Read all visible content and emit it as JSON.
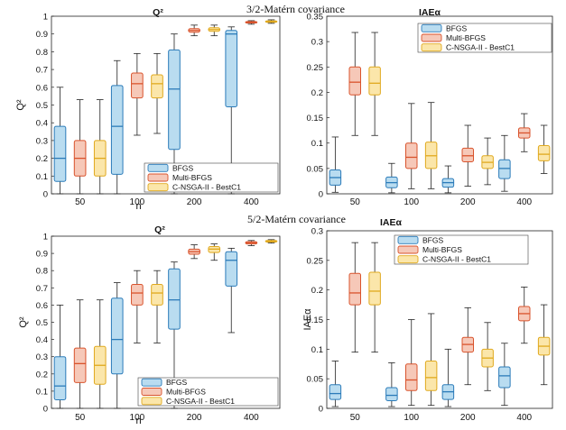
{
  "sections": [
    {
      "title": "3/2-Matérn covariance"
    },
    {
      "title": "5/2-Matérn covariance"
    }
  ],
  "legend_labels": [
    "BFGS",
    "Multi-BFGS",
    "C-NSGA-II - BestC1"
  ],
  "series_colors": {
    "BFGS": {
      "fill": "#b9dcf0",
      "stroke": "#2b7bb9"
    },
    "Multi-BFGS": {
      "fill": "#f6c8b8",
      "stroke": "#d9532c"
    },
    "C-NSGA-II - BestC1": {
      "fill": "#fbe6aa",
      "stroke": "#e0a91e"
    }
  },
  "chart_data": [
    {
      "type": "boxplot",
      "section": "3/2-Matérn covariance",
      "title": "Q²",
      "xlabel": "n",
      "ylabel": "Q²",
      "categories": [
        "50",
        "100",
        "200",
        "400"
      ],
      "ylim": [
        0,
        1
      ],
      "yticks": [
        0,
        0.1,
        0.2,
        0.3,
        0.4,
        0.5,
        0.6,
        0.7,
        0.8,
        0.9,
        1
      ],
      "legend_position": "bottom-right",
      "series": [
        {
          "name": "BFGS",
          "boxes": [
            {
              "min": 0.0,
              "q1": 0.07,
              "median": 0.2,
              "q3": 0.38,
              "max": 0.6
            },
            {
              "min": 0.0,
              "q1": 0.11,
              "median": 0.38,
              "q3": 0.61,
              "max": 0.75
            },
            {
              "min": 0.0,
              "q1": 0.25,
              "median": 0.59,
              "q3": 0.81,
              "max": 0.9
            },
            {
              "min": 0.0,
              "q1": 0.49,
              "median": 0.9,
              "q3": 0.92,
              "max": 0.94
            }
          ]
        },
        {
          "name": "Multi-BFGS",
          "boxes": [
            {
              "min": 0.0,
              "q1": 0.1,
              "median": 0.2,
              "q3": 0.3,
              "max": 0.53
            },
            {
              "min": 0.33,
              "q1": 0.54,
              "median": 0.62,
              "q3": 0.68,
              "max": 0.79
            },
            {
              "min": 0.89,
              "q1": 0.91,
              "median": 0.92,
              "q3": 0.93,
              "max": 0.95
            },
            {
              "min": 0.955,
              "q1": 0.962,
              "median": 0.966,
              "q3": 0.97,
              "max": 0.975
            }
          ]
        },
        {
          "name": "C-NSGA-II - BestC1",
          "boxes": [
            {
              "min": 0.0,
              "q1": 0.1,
              "median": 0.2,
              "q3": 0.3,
              "max": 0.53
            },
            {
              "min": 0.34,
              "q1": 0.54,
              "median": 0.62,
              "q3": 0.67,
              "max": 0.79
            },
            {
              "min": 0.89,
              "q1": 0.915,
              "median": 0.925,
              "q3": 0.935,
              "max": 0.95
            },
            {
              "min": 0.96,
              "q1": 0.966,
              "median": 0.97,
              "q3": 0.974,
              "max": 0.98
            }
          ]
        }
      ]
    },
    {
      "type": "boxplot",
      "section": "3/2-Matérn covariance",
      "title": "IAEα",
      "xlabel": "",
      "ylabel": "",
      "categories": [
        "50",
        "100",
        "200",
        "400"
      ],
      "ylim": [
        0,
        0.35
      ],
      "yticks": [
        0,
        0.05,
        0.1,
        0.15,
        0.2,
        0.25,
        0.3,
        0.35
      ],
      "legend_position": "top-right",
      "series": [
        {
          "name": "BFGS",
          "boxes": [
            {
              "min": 0.003,
              "q1": 0.017,
              "median": 0.032,
              "q3": 0.047,
              "max": 0.112
            },
            {
              "min": 0.002,
              "q1": 0.012,
              "median": 0.022,
              "q3": 0.033,
              "max": 0.06
            },
            {
              "min": 0.002,
              "q1": 0.013,
              "median": 0.022,
              "q3": 0.03,
              "max": 0.055
            },
            {
              "min": 0.005,
              "q1": 0.03,
              "median": 0.05,
              "q3": 0.067,
              "max": 0.115
            }
          ]
        },
        {
          "name": "Multi-BFGS",
          "boxes": [
            {
              "min": 0.115,
              "q1": 0.195,
              "median": 0.22,
              "q3": 0.25,
              "max": 0.318
            },
            {
              "min": 0.01,
              "q1": 0.05,
              "median": 0.072,
              "q3": 0.1,
              "max": 0.178
            },
            {
              "min": 0.015,
              "q1": 0.063,
              "median": 0.075,
              "q3": 0.09,
              "max": 0.135
            },
            {
              "min": 0.083,
              "q1": 0.11,
              "median": 0.12,
              "q3": 0.13,
              "max": 0.158
            }
          ]
        },
        {
          "name": "C-NSGA-II - BestC1",
          "boxes": [
            {
              "min": 0.115,
              "q1": 0.195,
              "median": 0.218,
              "q3": 0.25,
              "max": 0.318
            },
            {
              "min": 0.01,
              "q1": 0.05,
              "median": 0.075,
              "q3": 0.102,
              "max": 0.18
            },
            {
              "min": 0.018,
              "q1": 0.05,
              "median": 0.062,
              "q3": 0.075,
              "max": 0.11
            },
            {
              "min": 0.04,
              "q1": 0.065,
              "median": 0.078,
              "q3": 0.095,
              "max": 0.135
            }
          ]
        }
      ]
    },
    {
      "type": "boxplot",
      "section": "5/2-Matérn covariance",
      "title": "Q²",
      "xlabel": "n",
      "ylabel": "Q²",
      "categories": [
        "50",
        "100",
        "200",
        "400"
      ],
      "ylim": [
        0,
        1
      ],
      "yticks": [
        0,
        0.1,
        0.2,
        0.3,
        0.4,
        0.5,
        0.6,
        0.7,
        0.8,
        0.9,
        1
      ],
      "legend_position": "bottom-right",
      "series": [
        {
          "name": "BFGS",
          "boxes": [
            {
              "min": 0.0,
              "q1": 0.05,
              "median": 0.13,
              "q3": 0.3,
              "max": 0.6
            },
            {
              "min": 0.0,
              "q1": 0.2,
              "median": 0.4,
              "q3": 0.64,
              "max": 0.73
            },
            {
              "min": 0.0,
              "q1": 0.46,
              "median": 0.63,
              "q3": 0.81,
              "max": 0.85
            },
            {
              "min": 0.44,
              "q1": 0.71,
              "median": 0.86,
              "q3": 0.91,
              "max": 0.93
            }
          ]
        },
        {
          "name": "Multi-BFGS",
          "boxes": [
            {
              "min": 0.0,
              "q1": 0.15,
              "median": 0.26,
              "q3": 0.35,
              "max": 0.63
            },
            {
              "min": 0.38,
              "q1": 0.6,
              "median": 0.67,
              "q3": 0.72,
              "max": 0.8
            },
            {
              "min": 0.87,
              "q1": 0.895,
              "median": 0.91,
              "q3": 0.925,
              "max": 0.95
            },
            {
              "min": 0.945,
              "q1": 0.955,
              "median": 0.962,
              "q3": 0.968,
              "max": 0.975
            }
          ]
        },
        {
          "name": "C-NSGA-II - BestC1",
          "boxes": [
            {
              "min": 0.0,
              "q1": 0.14,
              "median": 0.25,
              "q3": 0.36,
              "max": 0.63
            },
            {
              "min": 0.38,
              "q1": 0.6,
              "median": 0.67,
              "q3": 0.72,
              "max": 0.8
            },
            {
              "min": 0.86,
              "q1": 0.905,
              "median": 0.925,
              "q3": 0.94,
              "max": 0.955
            },
            {
              "min": 0.96,
              "q1": 0.966,
              "median": 0.971,
              "q3": 0.975,
              "max": 0.98
            }
          ]
        }
      ]
    },
    {
      "type": "boxplot",
      "section": "5/2-Matérn covariance",
      "title": "IAEα",
      "xlabel": "",
      "ylabel": "IAEα",
      "categories": [
        "50",
        "100",
        "200",
        "400"
      ],
      "ylim": [
        0,
        0.3
      ],
      "yticks": [
        0,
        0.05,
        0.1,
        0.15,
        0.2,
        0.25,
        0.3
      ],
      "legend_position": "top-right",
      "series": [
        {
          "name": "BFGS",
          "boxes": [
            {
              "min": 0.003,
              "q1": 0.015,
              "median": 0.025,
              "q3": 0.04,
              "max": 0.08
            },
            {
              "min": 0.003,
              "q1": 0.013,
              "median": 0.022,
              "q3": 0.035,
              "max": 0.077
            },
            {
              "min": 0.003,
              "q1": 0.015,
              "median": 0.028,
              "q3": 0.04,
              "max": 0.1
            },
            {
              "min": 0.005,
              "q1": 0.035,
              "median": 0.055,
              "q3": 0.07,
              "max": 0.11
            }
          ]
        },
        {
          "name": "Multi-BFGS",
          "boxes": [
            {
              "min": 0.095,
              "q1": 0.175,
              "median": 0.195,
              "q3": 0.228,
              "max": 0.28
            },
            {
              "min": 0.005,
              "q1": 0.03,
              "median": 0.048,
              "q3": 0.075,
              "max": 0.15
            },
            {
              "min": 0.04,
              "q1": 0.095,
              "median": 0.108,
              "q3": 0.12,
              "max": 0.17
            },
            {
              "min": 0.11,
              "q1": 0.148,
              "median": 0.16,
              "q3": 0.172,
              "max": 0.205
            }
          ]
        },
        {
          "name": "C-NSGA-II - BestC1",
          "boxes": [
            {
              "min": 0.095,
              "q1": 0.175,
              "median": 0.198,
              "q3": 0.23,
              "max": 0.28
            },
            {
              "min": 0.005,
              "q1": 0.03,
              "median": 0.052,
              "q3": 0.08,
              "max": 0.16
            },
            {
              "min": 0.03,
              "q1": 0.07,
              "median": 0.085,
              "q3": 0.1,
              "max": 0.145
            },
            {
              "min": 0.04,
              "q1": 0.09,
              "median": 0.105,
              "q3": 0.12,
              "max": 0.175
            }
          ]
        }
      ]
    }
  ]
}
